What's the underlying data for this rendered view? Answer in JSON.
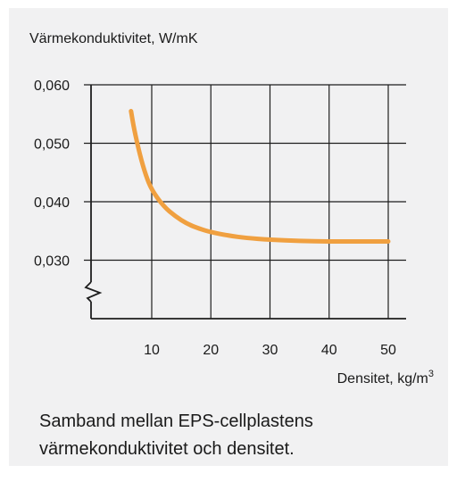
{
  "chart_data": {
    "type": "line",
    "ylabel": "Värmekonduktivitet, W/mK",
    "xlabel_text": "Densitet, kg/m",
    "xlabel_superscript": "3",
    "x_ticks": [
      "10",
      "20",
      "30",
      "40",
      "50"
    ],
    "y_ticks": [
      "0,060",
      "0,050",
      "0,040",
      "0,030"
    ],
    "xlim": [
      0,
      50
    ],
    "ylim": [
      0.022,
      0.06
    ],
    "y_axis_break": true,
    "grid": true,
    "line_color": "#f0a040",
    "series": [
      {
        "x": [
          6.5,
          7,
          8,
          9,
          10,
          12,
          14,
          16,
          18,
          20,
          23,
          26,
          30,
          35,
          40,
          45,
          50
        ],
        "y": [
          0.0555,
          0.0525,
          0.048,
          0.0445,
          0.042,
          0.0392,
          0.0375,
          0.0362,
          0.0354,
          0.0348,
          0.0342,
          0.0338,
          0.0335,
          0.0333,
          0.0332,
          0.0332,
          0.0332
        ]
      }
    ]
  },
  "caption": {
    "line1": "Samband mellan EPS-cellplastens",
    "line2": "värmekonduktivitet och densitet."
  }
}
